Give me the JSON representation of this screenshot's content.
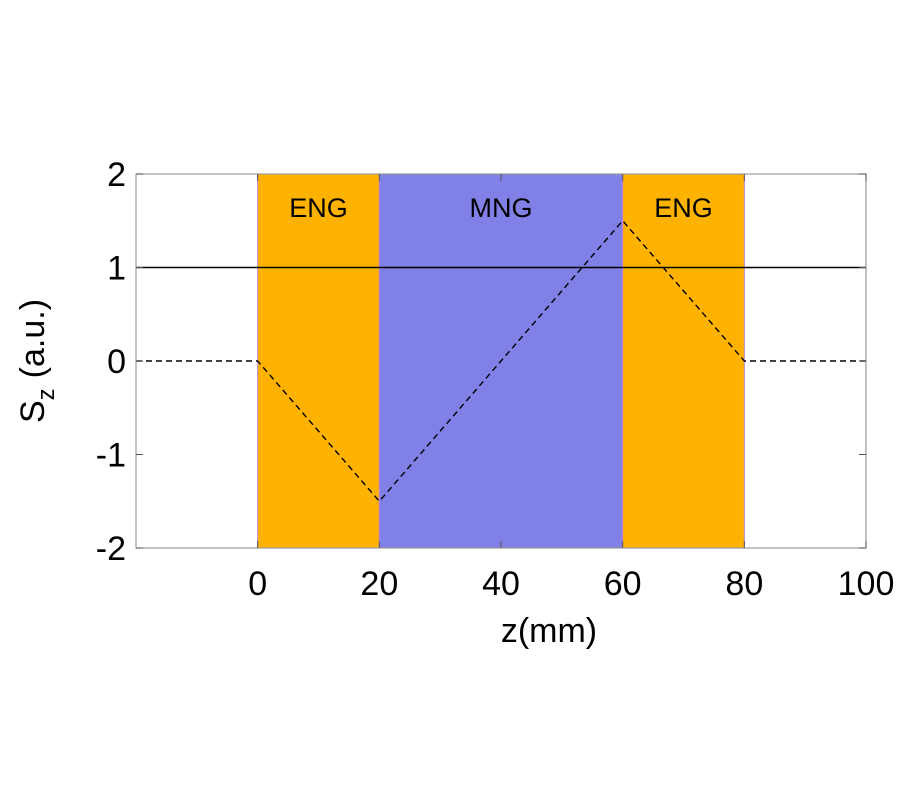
{
  "chart_data": {
    "type": "line",
    "xlabel": "z(mm)",
    "ylabel": "S",
    "ylabel_subscript": "z",
    "ylabel_unit": "(a.u.)",
    "xlim": [
      -20,
      100
    ],
    "ylim": [
      -2,
      2
    ],
    "xticks": [
      0,
      20,
      40,
      60,
      80,
      100
    ],
    "yticks": [
      -2,
      -1,
      0,
      1,
      2
    ],
    "grid": false,
    "regions": [
      {
        "label": "ENG",
        "from": 0,
        "to": 20,
        "color": "#FFB300"
      },
      {
        "label": "MNG",
        "from": 20,
        "to": 60,
        "color": "#8080E6"
      },
      {
        "label": "ENG",
        "from": 60,
        "to": 80,
        "color": "#FFB300"
      }
    ],
    "series": [
      {
        "style": "solid",
        "x": [
          -20,
          100
        ],
        "y": [
          1,
          1
        ]
      },
      {
        "style": "dashed",
        "x": [
          -20,
          0,
          20,
          60,
          80,
          100
        ],
        "y": [
          0,
          0,
          -1.5,
          1.5,
          0,
          0
        ]
      }
    ]
  }
}
